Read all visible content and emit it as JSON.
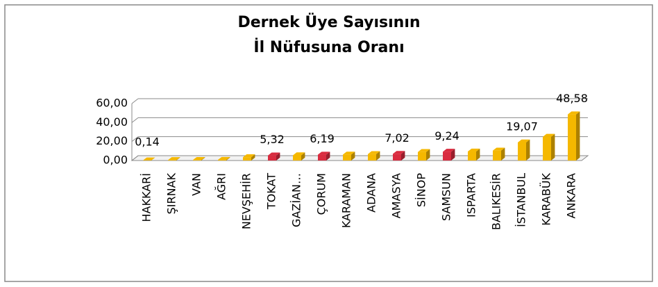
{
  "chart_data": {
    "type": "bar3d",
    "title": [
      "Dernek Üye Sayısının",
      "İl Nüfusuna Oranı"
    ],
    "categories": [
      "HAKKARİ",
      "ŞIRNAK",
      "VAN",
      "AĞRI",
      "NEVŞEHİR",
      "TOKAT",
      "GAZİAN…",
      "ÇORUM",
      "KARAMAN",
      "ADANA",
      "AMASYA",
      "SİNOP",
      "SAMSUN",
      "ISPARTA",
      "BALIKESİR",
      "İSTANBUL",
      "KARABÜK",
      "ANKARA"
    ],
    "values": [
      0.14,
      0.5,
      0.6,
      0.7,
      3.5,
      5.32,
      5.5,
      6.19,
      6.3,
      6.8,
      7.02,
      9.0,
      9.24,
      9.5,
      10.5,
      19.07,
      25.0,
      48.58
    ],
    "value_labels": [
      "0,14",
      null,
      null,
      null,
      null,
      "5,32",
      null,
      "6,19",
      null,
      null,
      "7,02",
      null,
      "9,24",
      null,
      null,
      "19,07",
      null,
      "48,58"
    ],
    "colors": [
      "#f5b800",
      "#f5b800",
      "#f5b800",
      "#f5b800",
      "#f5b800",
      "#d92b3f",
      "#f5b800",
      "#d92b3f",
      "#f5b800",
      "#f5b800",
      "#d92b3f",
      "#f5b800",
      "#d92b3f",
      "#f5b800",
      "#f5b800",
      "#f5b800",
      "#f5b800",
      "#f5b800"
    ],
    "ylim": [
      0,
      60
    ],
    "yticks": [
      {
        "value": 0,
        "label": "0,00"
      },
      {
        "value": 20,
        "label": "20,00"
      },
      {
        "value": 40,
        "label": "40,00"
      },
      {
        "value": 60,
        "label": "60,00"
      }
    ],
    "grid": true
  }
}
